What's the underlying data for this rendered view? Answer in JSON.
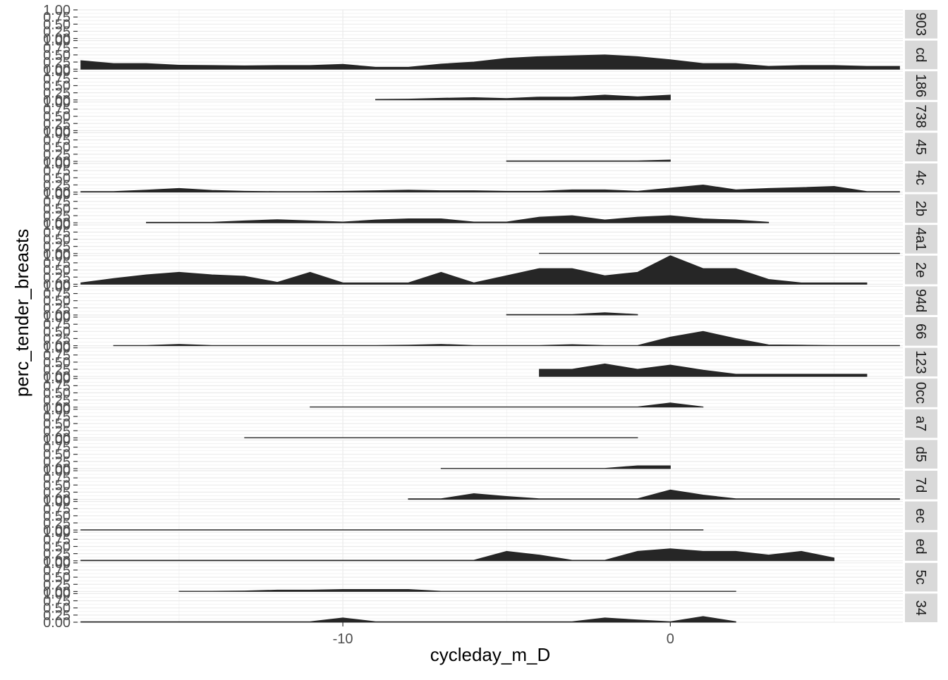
{
  "chart_data": {
    "type": "area",
    "xlabel": "cycleday_m_D",
    "ylabel": "perc_tender_breasts",
    "x_ticks": [
      -10,
      0
    ],
    "x_tick_labels": [
      "-10",
      "0"
    ],
    "xlim": [
      -18.1,
      7.1
    ],
    "ylim": [
      0,
      1
    ],
    "y_ticks": [
      0,
      0.25,
      0.5,
      0.75,
      1
    ],
    "y_tick_labels": [
      "0.00",
      "0.25",
      "0.50",
      "0.75",
      "1.00"
    ],
    "grid": true,
    "fill_color": "#262626",
    "panel_bg": "#ffffff",
    "grid_color": "#ebebeb",
    "strip_bg": "#d9d9d9",
    "text_color": "#4d4d4d",
    "panels": [
      {
        "strip_label": "903",
        "x": [],
        "y": []
      },
      {
        "strip_label": "cd",
        "x": [
          -18,
          -17,
          -16,
          -15,
          -14,
          -13,
          -12,
          -11,
          -10,
          -9,
          -8,
          -7,
          -6,
          -5,
          -4,
          -3,
          -2,
          -1,
          0,
          1,
          2,
          3,
          4,
          5,
          6,
          7
        ],
        "y": [
          0.3,
          0.2,
          0.2,
          0.14,
          0.13,
          0.12,
          0.13,
          0.13,
          0.17,
          0.07,
          0.07,
          0.18,
          0.25,
          0.38,
          0.44,
          0.47,
          0.5,
          0.44,
          0.33,
          0.2,
          0.2,
          0.1,
          0.13,
          0.13,
          0.1,
          0.1
        ]
      },
      {
        "strip_label": "186",
        "x": [
          -9,
          -8,
          -7,
          -6,
          -5,
          -4,
          -3,
          -2,
          -1,
          0
        ],
        "y": [
          0.02,
          0.03,
          0.06,
          0.08,
          0.05,
          0.1,
          0.1,
          0.17,
          0.11,
          0.17
        ]
      },
      {
        "strip_label": "738",
        "x": [],
        "y": []
      },
      {
        "strip_label": "45",
        "x": [
          -5,
          -4,
          -3,
          -2,
          -1,
          0
        ],
        "y": [
          0.02,
          0.02,
          0.02,
          0.02,
          0.02,
          0.05
        ]
      },
      {
        "strip_label": "4c",
        "x": [
          -18,
          -17,
          -16,
          -15,
          -14,
          -13,
          -12,
          -11,
          -10,
          -9,
          -8,
          -7,
          -6,
          -5,
          -4,
          -3,
          -2,
          -1,
          0,
          1,
          2,
          3,
          4,
          5,
          6,
          7
        ],
        "y": [
          0.02,
          0.02,
          0.07,
          0.13,
          0.06,
          0.03,
          0.02,
          0.02,
          0.03,
          0.05,
          0.07,
          0.05,
          0.05,
          0.03,
          0.03,
          0.08,
          0.08,
          0.03,
          0.14,
          0.25,
          0.08,
          0.13,
          0.16,
          0.2,
          0.02,
          0.02
        ]
      },
      {
        "strip_label": "2b",
        "x": [
          -16,
          -15,
          -14,
          -13,
          -12,
          -11,
          -10,
          -9,
          -8,
          -7,
          -6,
          -5,
          -4,
          -3,
          -2,
          -1,
          0,
          1,
          2,
          3
        ],
        "y": [
          0.02,
          0.02,
          0.02,
          0.07,
          0.11,
          0.07,
          0.03,
          0.1,
          0.14,
          0.14,
          0.03,
          0.03,
          0.2,
          0.25,
          0.1,
          0.2,
          0.25,
          0.14,
          0.1,
          0.02
        ]
      },
      {
        "strip_label": "4a1",
        "x": [
          -4,
          -3,
          -2,
          -1,
          0,
          1,
          2,
          3,
          4,
          5,
          6,
          7
        ],
        "y": [
          0.01,
          0.01,
          0.01,
          0.01,
          0.01,
          0.01,
          0.01,
          0.01,
          0.01,
          0.01,
          0.01,
          0.01
        ]
      },
      {
        "strip_label": "2e",
        "x": [
          -18,
          -17,
          -16,
          -15,
          -14,
          -13,
          -12,
          -11,
          -10,
          -9,
          -8,
          -7,
          -6,
          -5,
          -4,
          -3,
          -2,
          -1,
          0,
          1,
          2,
          3,
          4,
          5,
          6
        ],
        "y": [
          0.05,
          0.2,
          0.33,
          0.42,
          0.33,
          0.28,
          0.07,
          0.42,
          0.05,
          0.05,
          0.05,
          0.42,
          0.05,
          0.3,
          0.55,
          0.55,
          0.3,
          0.42,
          1.0,
          0.55,
          0.55,
          0.17,
          0.05,
          0.05,
          0.05
        ]
      },
      {
        "strip_label": "94d",
        "x": [
          -5,
          -4,
          -3,
          -2,
          -1
        ],
        "y": [
          0.02,
          0.02,
          0.02,
          0.08,
          0.02
        ]
      },
      {
        "strip_label": "66",
        "x": [
          -17,
          -16,
          -15,
          -14,
          -13,
          -12,
          -11,
          -10,
          -9,
          -8,
          -7,
          -6,
          -5,
          -4,
          -3,
          -2,
          -1,
          0,
          1,
          2,
          3,
          4,
          5,
          6,
          7
        ],
        "y": [
          0.01,
          0.01,
          0.05,
          0.01,
          0.01,
          0.01,
          0.01,
          0.01,
          0.01,
          0.02,
          0.05,
          0.01,
          0.01,
          0.01,
          0.04,
          0.01,
          0.01,
          0.3,
          0.5,
          0.25,
          0.03,
          0.02,
          0.01,
          0.01,
          0.01
        ]
      },
      {
        "strip_label": "123",
        "x": [
          -4,
          -3,
          -2,
          -1,
          0,
          1,
          2,
          3,
          4,
          5,
          6
        ],
        "y": [
          0.25,
          0.25,
          0.44,
          0.25,
          0.4,
          0.22,
          0.08,
          0.08,
          0.08,
          0.08,
          0.08
        ]
      },
      {
        "strip_label": "0cc",
        "x": [
          -11,
          -10,
          -9,
          -8,
          -7,
          -6,
          -5,
          -4,
          -3,
          -2,
          -1,
          0,
          1
        ],
        "y": [
          0.01,
          0.01,
          0.01,
          0.01,
          0.01,
          0.01,
          0.01,
          0.01,
          0.01,
          0.01,
          0.01,
          0.15,
          0.01
        ]
      },
      {
        "strip_label": "a7",
        "x": [
          -13,
          -12,
          -11,
          -10,
          -9,
          -8,
          -7,
          -6,
          -5,
          -4,
          -3,
          -2,
          -1
        ],
        "y": [
          0.01,
          0.01,
          0.01,
          0.01,
          0.01,
          0.01,
          0.01,
          0.01,
          0.01,
          0.01,
          0.01,
          0.01,
          0.01
        ]
      },
      {
        "strip_label": "d5",
        "x": [
          -7,
          -6,
          -5,
          -4,
          -3,
          -2,
          -1,
          0
        ],
        "y": [
          0.01,
          0.01,
          0.01,
          0.01,
          0.01,
          0.01,
          0.1,
          0.1
        ]
      },
      {
        "strip_label": "7d",
        "x": [
          -8,
          -7,
          -6,
          -5,
          -4,
          -3,
          -2,
          -1,
          0,
          1,
          2,
          3,
          4,
          5,
          6,
          7
        ],
        "y": [
          0.02,
          0.02,
          0.2,
          0.1,
          0.02,
          0.02,
          0.02,
          0.02,
          0.33,
          0.15,
          0.02,
          0.02,
          0.02,
          0.02,
          0.02,
          0.02
        ]
      },
      {
        "strip_label": "ec",
        "x": [
          -18,
          -17,
          -16,
          -15,
          -14,
          -13,
          -12,
          -11,
          -10,
          -9,
          -8,
          -7,
          -6,
          -5,
          -4,
          -3,
          -2,
          -1,
          0,
          1
        ],
        "y": [
          0.01,
          0.01,
          0.01,
          0.01,
          0.01,
          0.01,
          0.01,
          0.01,
          0.01,
          0.01,
          0.01,
          0.01,
          0.01,
          0.01,
          0.01,
          0.01,
          0.01,
          0.01,
          0.01,
          0.01
        ]
      },
      {
        "strip_label": "ed",
        "x": [
          -18,
          -17,
          -16,
          -15,
          -14,
          -13,
          -12,
          -11,
          -10,
          -9,
          -8,
          -7,
          -6,
          -5,
          -4,
          -3,
          -2,
          -1,
          0,
          1,
          2,
          3,
          4,
          5
        ],
        "y": [
          0.02,
          0.02,
          0.02,
          0.02,
          0.02,
          0.02,
          0.02,
          0.02,
          0.02,
          0.02,
          0.02,
          0.02,
          0.02,
          0.33,
          0.2,
          0.02,
          0.02,
          0.33,
          0.42,
          0.33,
          0.33,
          0.2,
          0.33,
          0.1
        ]
      },
      {
        "strip_label": "5c",
        "x": [
          -15,
          -14,
          -13,
          -12,
          -11,
          -10,
          -9,
          -8,
          -7,
          -6,
          -5,
          -4,
          -3,
          -2,
          -1,
          0,
          1,
          2
        ],
        "y": [
          0.01,
          0.01,
          0.02,
          0.05,
          0.05,
          0.07,
          0.07,
          0.07,
          0.01,
          0.01,
          0.01,
          0.01,
          0.01,
          0.01,
          0.01,
          0.01,
          0.01,
          0.01
        ]
      },
      {
        "strip_label": "34",
        "x": [
          -18,
          -17,
          -16,
          -15,
          -14,
          -13,
          -12,
          -11,
          -10,
          -9,
          -8,
          -7,
          -6,
          -5,
          -4,
          -3,
          -2,
          -1,
          0,
          1,
          2
        ],
        "y": [
          0.02,
          0.02,
          0.02,
          0.02,
          0.02,
          0.02,
          0.02,
          0.02,
          0.15,
          0.02,
          0.02,
          0.02,
          0.02,
          0.02,
          0.02,
          0.02,
          0.15,
          0.08,
          0.02,
          0.2,
          0.02
        ]
      }
    ]
  }
}
